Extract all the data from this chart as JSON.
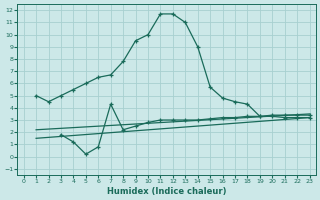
{
  "bg_color": "#cce8e8",
  "grid_color": "#a8d0d0",
  "line_color": "#1a6b5a",
  "xlabel": "Humidex (Indice chaleur)",
  "xlim": [
    -0.5,
    23.5
  ],
  "ylim": [
    -1.5,
    12.5
  ],
  "xticks": [
    0,
    1,
    2,
    3,
    4,
    5,
    6,
    7,
    8,
    9,
    10,
    11,
    12,
    13,
    14,
    15,
    16,
    17,
    18,
    19,
    20,
    21,
    22,
    23
  ],
  "yticks": [
    -1,
    0,
    1,
    2,
    3,
    4,
    5,
    6,
    7,
    8,
    9,
    10,
    11,
    12
  ],
  "line1_x": [
    1,
    2,
    3,
    4,
    5,
    6,
    7,
    8,
    9,
    10,
    11,
    12,
    13,
    14,
    15,
    16,
    17,
    18,
    19,
    20,
    21,
    22,
    23
  ],
  "line1_y": [
    5.0,
    4.5,
    5.0,
    5.5,
    6.0,
    6.5,
    6.7,
    7.8,
    9.5,
    10.0,
    11.7,
    11.7,
    11.0,
    9.0,
    5.7,
    4.8,
    4.5,
    4.3,
    3.3,
    3.3,
    3.2,
    3.2,
    3.2
  ],
  "line2_x": [
    3,
    4,
    5,
    6,
    7,
    8,
    9,
    10,
    11,
    12,
    13,
    14,
    15,
    16,
    17,
    18,
    19,
    20,
    21,
    22,
    23
  ],
  "line2_y": [
    1.8,
    1.2,
    0.2,
    0.8,
    4.3,
    2.2,
    2.5,
    2.8,
    3.0,
    3.0,
    3.0,
    3.0,
    3.1,
    3.2,
    3.2,
    3.3,
    3.3,
    3.4,
    3.4,
    3.4,
    3.4
  ],
  "line3_x": [
    1,
    23
  ],
  "line3_y": [
    1.5,
    3.2
  ],
  "line4_x": [
    1,
    23
  ],
  "line4_y": [
    2.2,
    3.5
  ]
}
